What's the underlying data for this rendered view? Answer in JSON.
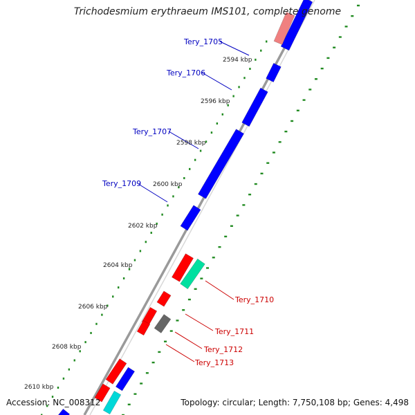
{
  "title": "Trichodesmium erythraeum IMS101, complete genome",
  "accession": "Accession: NC_008312",
  "topology": "Topology: circular; Length: 7,750,108 bp; Genes: 4,498",
  "colors": {
    "forward_cds": "#0000ff",
    "reverse_cds": "#ff0000",
    "reverse_cds_light": "#f08080",
    "other_feature_teal": "#00e0a0",
    "other_feature_gray": "#666666",
    "other_feature_cyan": "#00d8d8",
    "gc_skew_dots": "#228b22",
    "backbone": "#888888",
    "forward_label": "#0000c0",
    "reverse_label": "#cc0000"
  },
  "ticks": [
    {
      "label": "2594 kbp",
      "kbp": 2594
    },
    {
      "label": "2596 kbp",
      "kbp": 2596
    },
    {
      "label": "2598 kbp",
      "kbp": 2598
    },
    {
      "label": "2600 kbp",
      "kbp": 2600
    },
    {
      "label": "2602 kbp",
      "kbp": 2602
    },
    {
      "label": "2604 kbp",
      "kbp": 2604
    },
    {
      "label": "2606 kbp",
      "kbp": 2606
    },
    {
      "label": "2608 kbp",
      "kbp": 2608
    },
    {
      "label": "2610 kbp",
      "kbp": 2610
    }
  ],
  "forward_genes": [
    {
      "label": "Tery_1705"
    },
    {
      "label": "Tery_1706"
    },
    {
      "label": "Tery_1707"
    },
    {
      "label": "Tery_1709"
    }
  ],
  "reverse_genes": [
    {
      "label": "Tery_1710"
    },
    {
      "label": "Tery_1711"
    },
    {
      "label": "Tery_1712"
    },
    {
      "label": "Tery_1713"
    }
  ]
}
